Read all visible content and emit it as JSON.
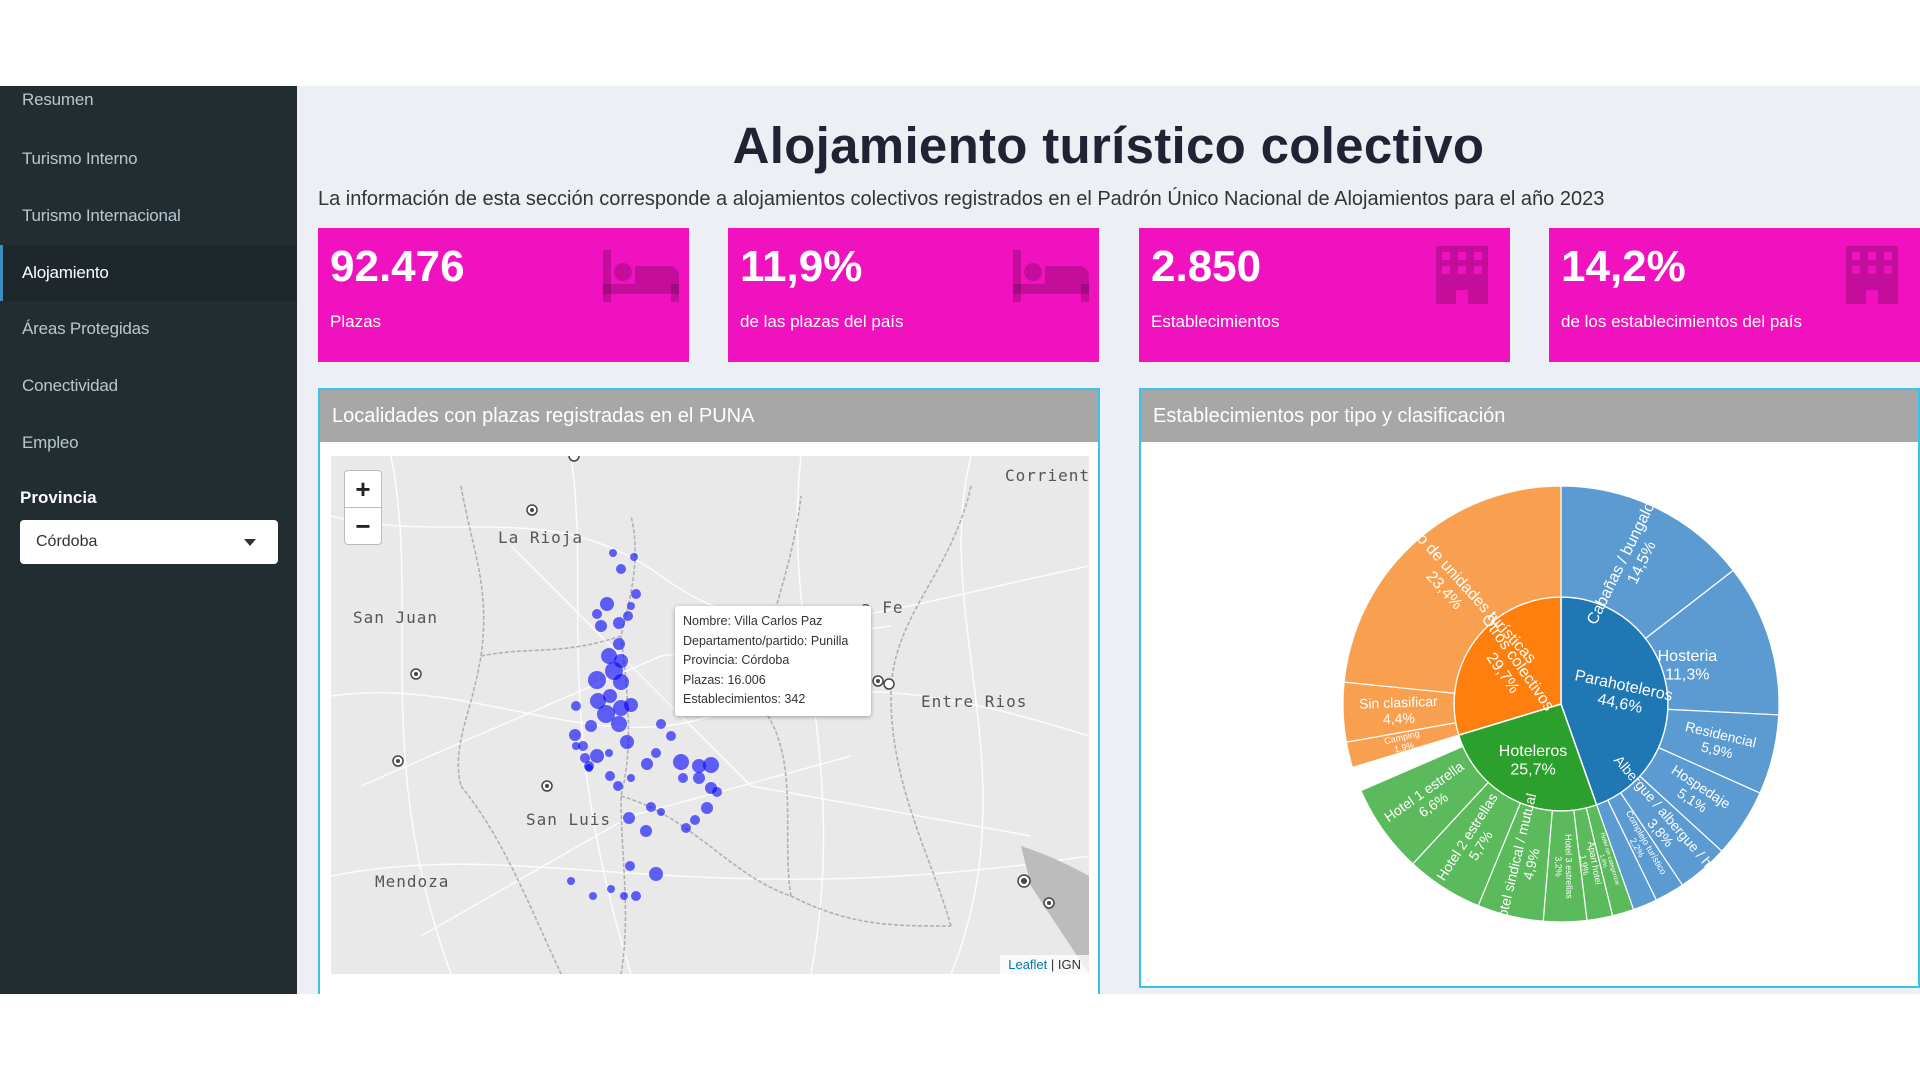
{
  "sidebar": {
    "items": [
      "Resumen",
      "Turismo Interno",
      "Turismo Internacional",
      "Alojamiento",
      "Áreas Protegidas",
      "Conectividad",
      "Empleo"
    ],
    "active_index": 3,
    "provincia_label": "Provincia",
    "provincia_value": "Córdoba"
  },
  "header": {
    "title": "Alojamiento turístico colectivo",
    "subtitle": "La información de esta sección corresponde a alojamientos colectivos registrados en el Padrón Único Nacional de Alojamientos para el año 2023"
  },
  "value_boxes": [
    {
      "value": "92.476",
      "label": "Plazas",
      "icon": "bed-icon"
    },
    {
      "value": "11,9%",
      "label": "de las plazas del país",
      "icon": "bed-icon"
    },
    {
      "value": "2.850",
      "label": "Establecimientos",
      "icon": "building-icon"
    },
    {
      "value": "14,2%",
      "label": "de los establecimientos del país",
      "icon": "building-icon"
    }
  ],
  "colors": {
    "accent_magenta": "#f012be",
    "sidebar_bg": "#222d32",
    "box_border": "#3ec0e8",
    "point_blue": "#0000ff"
  },
  "map": {
    "title": "Localidades con plazas registradas en el PUNA",
    "zoom_in": "+",
    "zoom_out": "−",
    "place_labels": [
      "Corriente",
      "La Rioja",
      "San Juan",
      "a Fe",
      "Entre Rios",
      "San Luis",
      "Mendoza"
    ],
    "tooltip": [
      "Nombre: Villa Carlos Paz",
      "Departamento/partido: Punilla",
      "Provincia: Córdoba",
      "Plazas: 16.006",
      "Establecimientos: 342"
    ],
    "attribution_link": "Leaflet",
    "attribution_rest": " | IGN"
  },
  "sunburst": {
    "title": "Establecimientos por tipo y clasificación",
    "inner": [
      {
        "name": "Parahoteleros",
        "pct": "44,6%",
        "color": "#1f77b4"
      },
      {
        "name": "Hoteleros",
        "pct": "25,7%",
        "color": "#2ca02c"
      },
      {
        "name": "Otros colectivos",
        "pct": "29,7%",
        "color": "#ff7f0e"
      }
    ],
    "outer": [
      {
        "name": "Cabañas / bungalows",
        "pct": "14,5%",
        "parent": 0
      },
      {
        "name": "Hosteria",
        "pct": "11,3%",
        "parent": 0
      },
      {
        "name": "Residencial",
        "pct": "5,9%",
        "parent": 0
      },
      {
        "name": "Hospedaje",
        "pct": "5,1%",
        "parent": 0
      },
      {
        "name": "Albergue / albergue / hostel",
        "pct": "3,8%",
        "parent": 0
      },
      {
        "name": "Complejo turístico",
        "pct": "2,2%",
        "parent": 0
      },
      {
        "name": "",
        "pct": "",
        "parent": 0
      },
      {
        "name": "Hotel sin categorizar",
        "pct": "1,6%",
        "parent": 1
      },
      {
        "name": "Apart hotel",
        "pct": "1,9%",
        "parent": 1
      },
      {
        "name": "Hotel 3 estrellas",
        "pct": "3,2%",
        "parent": 1
      },
      {
        "name": "Hotel sindical / mutual",
        "pct": "4,9%",
        "parent": 1
      },
      {
        "name": "Hotel 2 estrellas",
        "pct": "5,7%",
        "parent": 1
      },
      {
        "name": "Hotel 1 estrella",
        "pct": "6,6%",
        "parent": 1
      },
      {
        "name": "Camping",
        "pct": "1,9%",
        "parent": 2
      },
      {
        "name": "Sin clasificar",
        "pct": "4,4%",
        "parent": 2
      },
      {
        "name": "Conjunto de unidades turísticas",
        "pct": "23,4%",
        "parent": 2
      }
    ]
  }
}
